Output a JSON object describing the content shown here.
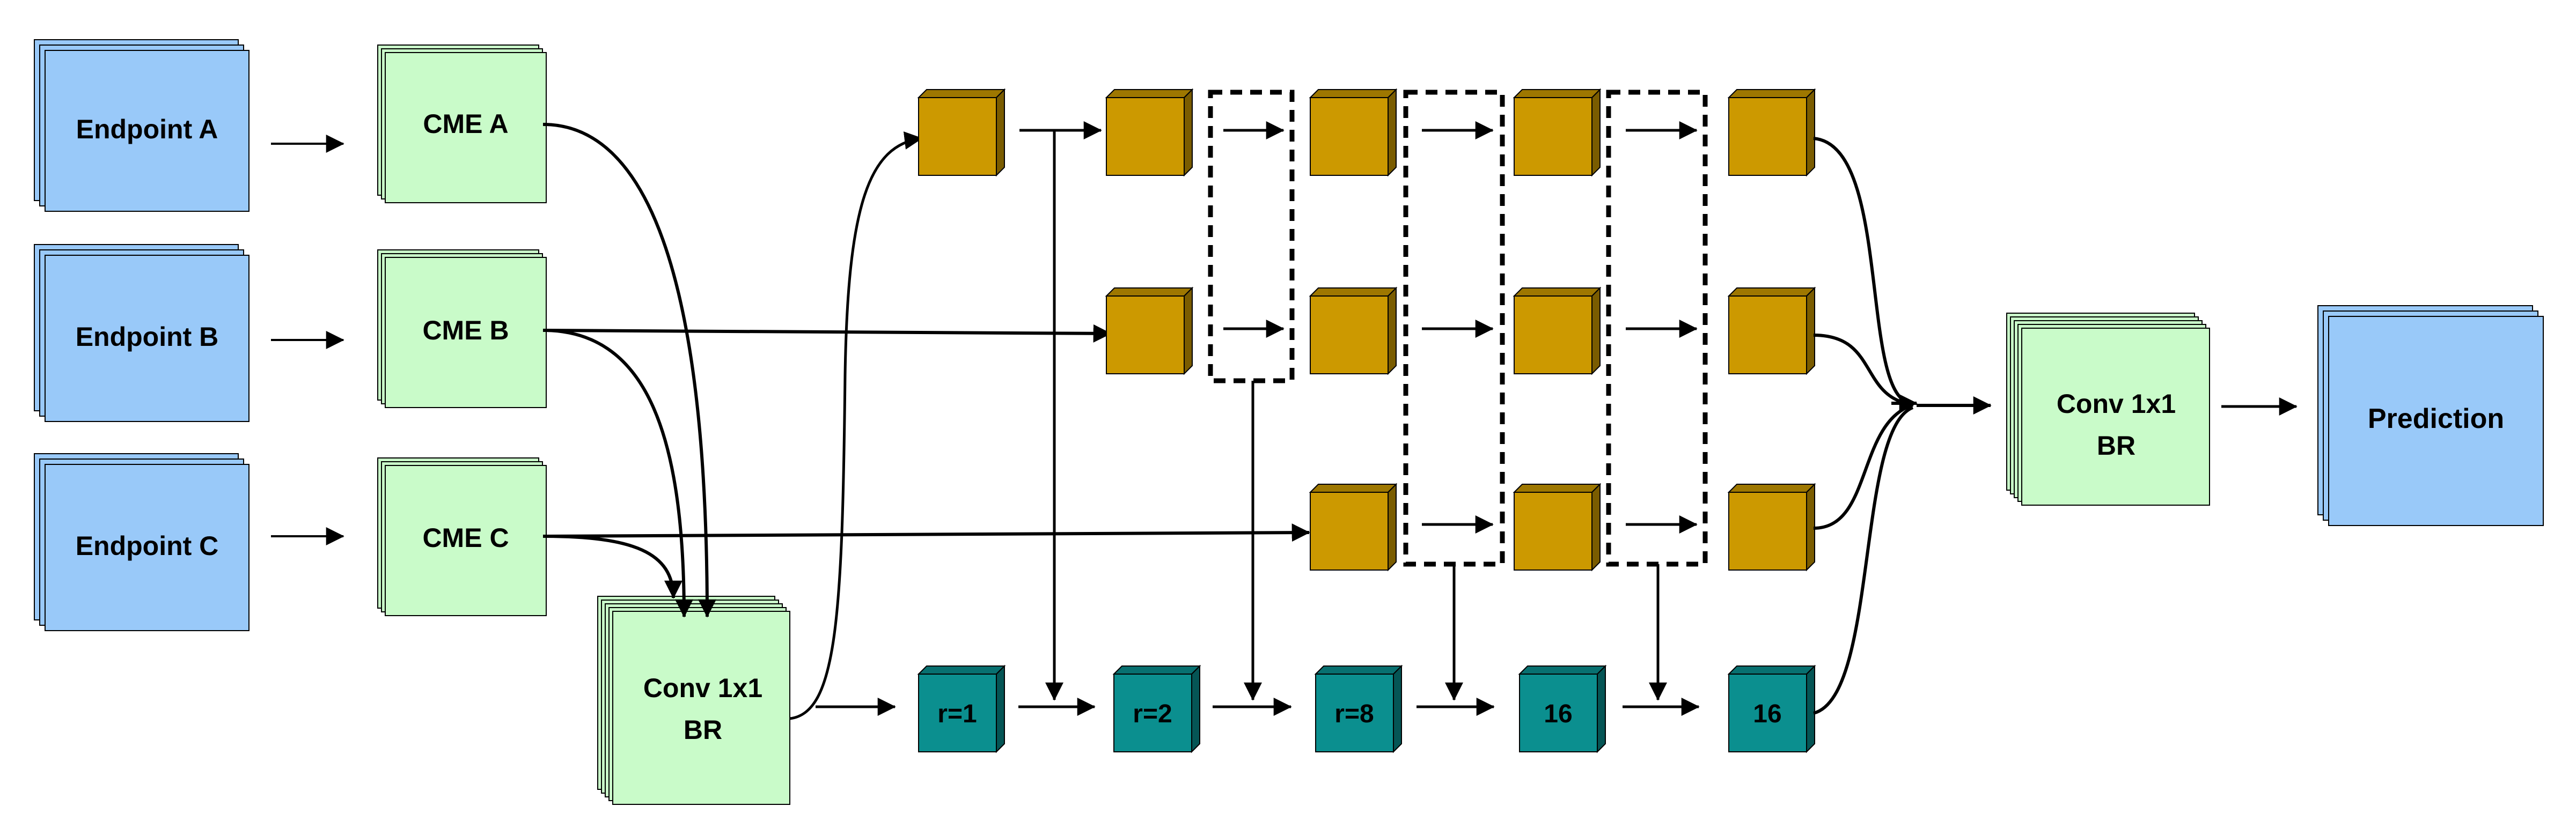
{
  "inputs": [
    {
      "label": "Endpoint A"
    },
    {
      "label": "Endpoint B"
    },
    {
      "label": "Endpoint C"
    }
  ],
  "cme": [
    {
      "label": "CME A"
    },
    {
      "label": "CME B"
    },
    {
      "label": "CME C"
    }
  ],
  "fusion": {
    "line1": "Conv 1x1",
    "line2": "BR"
  },
  "dilation_rates": [
    "r=1",
    "r=2",
    "r=8",
    "16",
    "16"
  ],
  "output_conv": {
    "line1": "Conv 1x1",
    "line2": "BR"
  },
  "prediction": {
    "label": "Prediction"
  },
  "colors": {
    "endpoint_fill": "#99c9f9",
    "cme_fill": "#c9fbc9",
    "feature_cube": "#cc9900",
    "dilation_cube": "#0b8f8f",
    "stroke": "#000000"
  }
}
